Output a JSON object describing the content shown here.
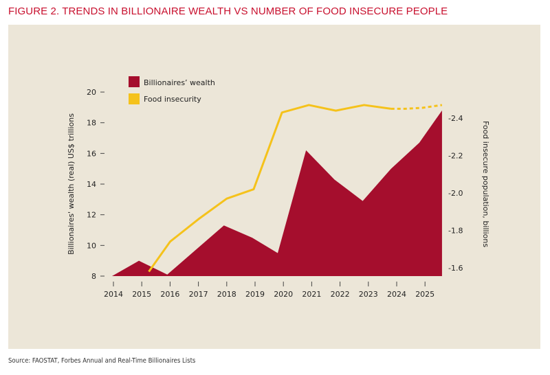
{
  "title": "FIGURE 2. TRENDS IN BILLIONAIRE WEALTH VS NUMBER OF FOOD INSECURE PEOPLE",
  "source": "Source: FAOSTAT, Forbes Annual and Real-Time Billionaires Lists",
  "chart_data": {
    "type": "area+line",
    "xlabel": "",
    "x_ticks": [
      "2014",
      "2015",
      "2016",
      "2017",
      "2018",
      "2019",
      "2020",
      "2021",
      "2022",
      "2023",
      "2024",
      "2025"
    ],
    "ylabel_left": "Billionaires' wealth (real) US$ trillions",
    "ylabel_right": "Food insecure population, billions",
    "ylim_left": [
      8,
      20
    ],
    "yticks_left": [
      "8",
      "10",
      "12",
      "14",
      "16",
      "18",
      "20"
    ],
    "ylim_right": [
      1.6,
      2.4
    ],
    "yticks_right": [
      "-1.6",
      "-1.8",
      "-2.0",
      "-2.2",
      "-2.4"
    ],
    "grid": false,
    "legend_position": "top-left",
    "series": [
      {
        "name": "Billionaires’ wealth",
        "type": "area",
        "color": "#a50e2d",
        "x": [
          2013.95,
          2014.9,
          2015.9,
          2016.9,
          2017.9,
          2018.9,
          2019.8,
          2020.8,
          2021.8,
          2022.8,
          2023.8,
          2024.8,
          2025.6
        ],
        "values": [
          8.0,
          9.0,
          8.1,
          9.7,
          11.3,
          10.5,
          9.5,
          16.2,
          14.3,
          12.9,
          15.0,
          16.7,
          18.8
        ]
      },
      {
        "name": "Food insecurity",
        "type": "line",
        "axis": "right",
        "color": "#f5c21b",
        "x": [
          2015.25,
          2016,
          2017,
          2018,
          2018.95,
          2019.95,
          2020.9,
          2021.85,
          2022.85,
          2023.8
        ],
        "values": [
          1.58,
          1.74,
          1.86,
          1.97,
          2.02,
          2.43,
          2.47,
          2.44,
          2.47,
          2.45
        ],
        "projected_x": [
          2023.8,
          2024.3,
          2024.9,
          2025.6
        ],
        "projected_values": [
          2.45,
          2.45,
          2.455,
          2.47
        ]
      }
    ]
  }
}
